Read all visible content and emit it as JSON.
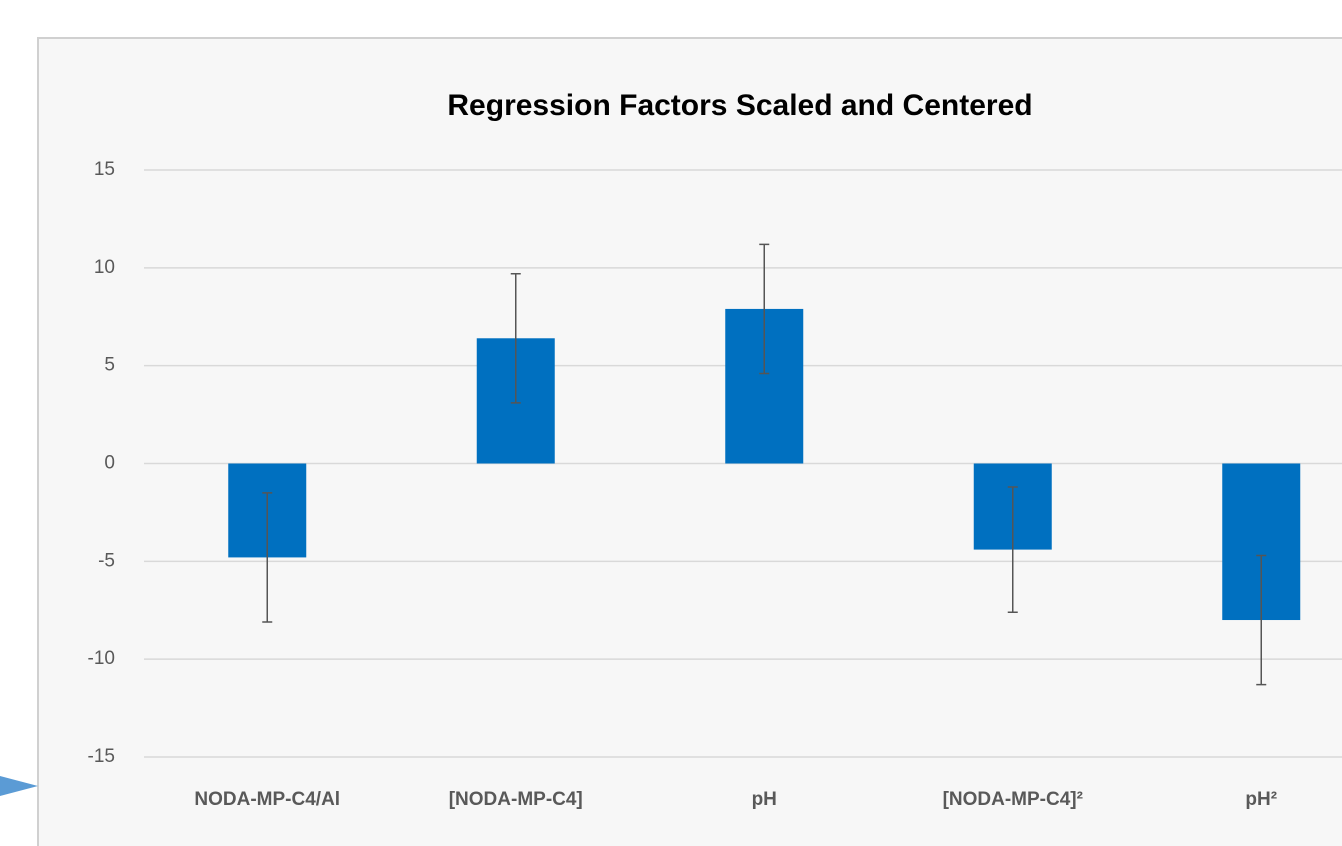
{
  "chart_data": {
    "type": "bar",
    "title": "Regression Factors Scaled and Centered",
    "categories": [
      "NODA-MP-C4/Al",
      "[NODA-MP-C4]",
      "pH",
      "[NODA-MP-C4]²",
      "pH²"
    ],
    "values": [
      -4.8,
      6.4,
      7.9,
      -4.4,
      -8.0
    ],
    "errors": [
      3.3,
      3.3,
      3.3,
      3.2,
      3.3
    ],
    "color": "#0070c0",
    "ylim": [
      -15,
      15
    ],
    "yticks": [
      -15,
      -10,
      -5,
      0,
      5,
      10,
      15
    ],
    "grid": true
  }
}
